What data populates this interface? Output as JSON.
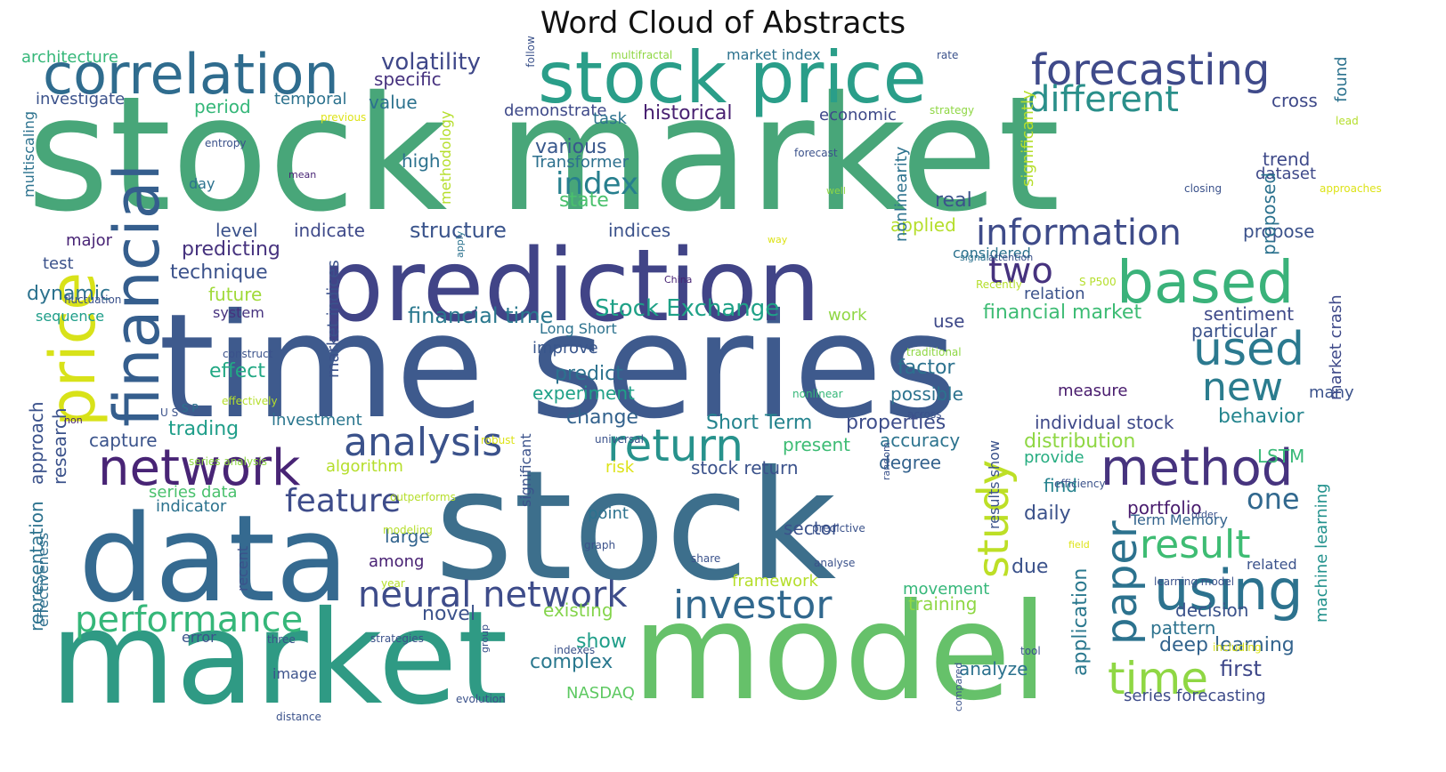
{
  "title": "Word Cloud of Abstracts",
  "palette_note": "viridis",
  "words": [
    {
      "text": "stock market",
      "size": 178,
      "color": "#48a679",
      "rot": 0
    },
    {
      "text": "time series",
      "size": 162,
      "color": "#3e5a8d",
      "rot": 0
    },
    {
      "text": "stock",
      "size": 170,
      "color": "#3d6f8c",
      "rot": 0
    },
    {
      "text": "model",
      "size": 150,
      "color": "#66c16a",
      "rot": 0
    },
    {
      "text": "market",
      "size": 145,
      "color": "#2f9a84",
      "rot": 0
    },
    {
      "text": "data",
      "size": 135,
      "color": "#356a90",
      "rot": 0
    },
    {
      "text": "prediction",
      "size": 112,
      "color": "#414487",
      "rot": 0
    },
    {
      "text": "stock price",
      "size": 80,
      "color": "#2a9e89",
      "rot": 0
    },
    {
      "text": "correlation",
      "size": 62,
      "color": "#2f6c8e",
      "rot": 0
    },
    {
      "text": "financial",
      "size": 70,
      "color": "#355e8d",
      "rot": 270
    },
    {
      "text": "price",
      "size": 70,
      "color": "#d8e219",
      "rot": 270
    },
    {
      "text": "forecasting",
      "size": 48,
      "color": "#3f4a8a",
      "rot": 0
    },
    {
      "text": "different",
      "size": 40,
      "color": "#2a8f8a",
      "rot": 0
    },
    {
      "text": "based",
      "size": 66,
      "color": "#3ab27a",
      "rot": 0
    },
    {
      "text": "information",
      "size": 40,
      "color": "#3e4b89",
      "rot": 0
    },
    {
      "text": "two",
      "size": 40,
      "color": "#46327e",
      "rot": 0
    },
    {
      "text": "used",
      "size": 52,
      "color": "#2b798f",
      "rot": 0
    },
    {
      "text": "new",
      "size": 44,
      "color": "#2b7c8e",
      "rot": 0
    },
    {
      "text": "network",
      "size": 56,
      "color": "#482475",
      "rot": 0
    },
    {
      "text": "analysis",
      "size": 44,
      "color": "#3b528b",
      "rot": 0
    },
    {
      "text": "return",
      "size": 50,
      "color": "#27928c",
      "rot": 0
    },
    {
      "text": "method",
      "size": 56,
      "color": "#46337e",
      "rot": 0
    },
    {
      "text": "study",
      "size": 48,
      "color": "#bddf26",
      "rot": 270
    },
    {
      "text": "paper",
      "size": 48,
      "color": "#2c728e",
      "rot": 270
    },
    {
      "text": "result",
      "size": 44,
      "color": "#3ebc73",
      "rot": 0
    },
    {
      "text": "using",
      "size": 62,
      "color": "#2c728e",
      "rot": 0
    },
    {
      "text": "time",
      "size": 50,
      "color": "#8fd744",
      "rot": 0
    },
    {
      "text": "one",
      "size": 32,
      "color": "#31688e",
      "rot": 0
    },
    {
      "text": "feature",
      "size": 36,
      "color": "#3e4c8a",
      "rot": 0
    },
    {
      "text": "performance",
      "size": 40,
      "color": "#35b779",
      "rot": 0
    },
    {
      "text": "neural network",
      "size": 40,
      "color": "#3e4c8a",
      "rot": 0
    },
    {
      "text": "investor",
      "size": 44,
      "color": "#31688e",
      "rot": 0
    },
    {
      "text": "index",
      "size": 34,
      "color": "#277f8e",
      "rot": 0
    },
    {
      "text": "volatility",
      "size": 26,
      "color": "#3f4889",
      "rot": 0
    },
    {
      "text": "specific",
      "size": 20,
      "color": "#46317e",
      "rot": 0
    },
    {
      "text": "historical",
      "size": 22,
      "color": "#482071",
      "rot": 0
    },
    {
      "text": "various",
      "size": 22,
      "color": "#38588c",
      "rot": 0
    },
    {
      "text": "Transformer",
      "size": 18,
      "color": "#2d708e",
      "rot": 0
    },
    {
      "text": "state",
      "size": 22,
      "color": "#4ac16d",
      "rot": 0
    },
    {
      "text": "structure",
      "size": 24,
      "color": "#3a548c",
      "rot": 0
    },
    {
      "text": "indices",
      "size": 20,
      "color": "#3b528b",
      "rot": 0
    },
    {
      "text": "level",
      "size": 20,
      "color": "#3b528b",
      "rot": 0
    },
    {
      "text": "indicate",
      "size": 20,
      "color": "#3e4989",
      "rot": 0
    },
    {
      "text": "predicting",
      "size": 22,
      "color": "#46327e",
      "rot": 0
    },
    {
      "text": "technique",
      "size": 22,
      "color": "#3b528b",
      "rot": 0
    },
    {
      "text": "future",
      "size": 20,
      "color": "#a0da39",
      "rot": 0
    },
    {
      "text": "system",
      "size": 16,
      "color": "#46327e",
      "rot": 0
    },
    {
      "text": "financial time",
      "size": 24,
      "color": "#2a788e",
      "rot": 0
    },
    {
      "text": "Stock Exchange",
      "size": 26,
      "color": "#1fa187",
      "rot": 0
    },
    {
      "text": "Long Short",
      "size": 16,
      "color": "#2c728e",
      "rot": 0
    },
    {
      "text": "improve",
      "size": 18,
      "color": "#39568c",
      "rot": 0
    },
    {
      "text": "predict",
      "size": 22,
      "color": "#2c728e",
      "rot": 0
    },
    {
      "text": "experiment",
      "size": 20,
      "color": "#1fa187",
      "rot": 0
    },
    {
      "text": "change",
      "size": 22,
      "color": "#33628d",
      "rot": 0
    },
    {
      "text": "effect",
      "size": 22,
      "color": "#22a884",
      "rot": 0
    },
    {
      "text": "trading",
      "size": 22,
      "color": "#1f9e89",
      "rot": 0
    },
    {
      "text": "investment",
      "size": 18,
      "color": "#2a768e",
      "rot": 0
    },
    {
      "text": "capture",
      "size": 20,
      "color": "#3a538b",
      "rot": 0
    },
    {
      "text": "Short Term",
      "size": 22,
      "color": "#25848e",
      "rot": 0
    },
    {
      "text": "properties",
      "size": 22,
      "color": "#3d4d8a",
      "rot": 0
    },
    {
      "text": "accuracy",
      "size": 20,
      "color": "#2c738e",
      "rot": 0
    },
    {
      "text": "distribution",
      "size": 22,
      "color": "#8fd744",
      "rot": 0
    },
    {
      "text": "LSTM",
      "size": 20,
      "color": "#38b977",
      "rot": 0
    },
    {
      "text": "behavior",
      "size": 22,
      "color": "#25858e",
      "rot": 0
    },
    {
      "text": "individual stock",
      "size": 20,
      "color": "#3e4989",
      "rot": 0
    },
    {
      "text": "present",
      "size": 20,
      "color": "#3dbc74",
      "rot": 0
    },
    {
      "text": "stock return",
      "size": 20,
      "color": "#3b528b",
      "rot": 0
    },
    {
      "text": "degree",
      "size": 20,
      "color": "#33628d",
      "rot": 0
    },
    {
      "text": "algorithm",
      "size": 18,
      "color": "#b5de2b",
      "rot": 0
    },
    {
      "text": "risk",
      "size": 18,
      "color": "#dde318",
      "rot": 0
    },
    {
      "text": "series data",
      "size": 18,
      "color": "#4ac16d",
      "rot": 0
    },
    {
      "text": "indicator",
      "size": 18,
      "color": "#2c728e",
      "rot": 0
    },
    {
      "text": "research",
      "size": 20,
      "color": "#3b528b",
      "rot": 270
    },
    {
      "text": "approach",
      "size": 20,
      "color": "#3b528b",
      "rot": 270
    },
    {
      "text": "representation",
      "size": 20,
      "color": "#2c728e",
      "rot": 270
    },
    {
      "text": "effectiveness",
      "size": 16,
      "color": "#2e6f8e",
      "rot": 270
    },
    {
      "text": "large",
      "size": 20,
      "color": "#32648e",
      "rot": 0
    },
    {
      "text": "among",
      "size": 18,
      "color": "#482173",
      "rot": 0
    },
    {
      "text": "point",
      "size": 18,
      "color": "#2c728e",
      "rot": 0
    },
    {
      "text": "sector",
      "size": 20,
      "color": "#3b528b",
      "rot": 0
    },
    {
      "text": "daily",
      "size": 22,
      "color": "#3b528b",
      "rot": 0
    },
    {
      "text": "find",
      "size": 20,
      "color": "#26828e",
      "rot": 0
    },
    {
      "text": "due",
      "size": 22,
      "color": "#3b528b",
      "rot": 0
    },
    {
      "text": "portfolio",
      "size": 20,
      "color": "#481b6d",
      "rot": 0
    },
    {
      "text": "Term Memory",
      "size": 16,
      "color": "#33638d",
      "rot": 0
    },
    {
      "text": "provide",
      "size": 18,
      "color": "#27ad81",
      "rot": 0
    },
    {
      "text": "novel",
      "size": 22,
      "color": "#3b528b",
      "rot": 0
    },
    {
      "text": "existing",
      "size": 20,
      "color": "#84d44b",
      "rot": 0
    },
    {
      "text": "show",
      "size": 22,
      "color": "#1f9e89",
      "rot": 0
    },
    {
      "text": "complex",
      "size": 22,
      "color": "#2a788e",
      "rot": 0
    },
    {
      "text": "NASDAQ",
      "size": 18,
      "color": "#5ec962",
      "rot": 0
    },
    {
      "text": "framework",
      "size": 18,
      "color": "#b5de2b",
      "rot": 0
    },
    {
      "text": "movement",
      "size": 18,
      "color": "#35b779",
      "rot": 0
    },
    {
      "text": "training",
      "size": 20,
      "color": "#8fd744",
      "rot": 0
    },
    {
      "text": "decision",
      "size": 20,
      "color": "#3b528b",
      "rot": 0
    },
    {
      "text": "pattern",
      "size": 20,
      "color": "#2c728e",
      "rot": 0
    },
    {
      "text": "deep learning",
      "size": 22,
      "color": "#33638d",
      "rot": 0
    },
    {
      "text": "first",
      "size": 24,
      "color": "#3f4889",
      "rot": 0
    },
    {
      "text": "analyze",
      "size": 20,
      "color": "#2c728e",
      "rot": 0
    },
    {
      "text": "series forecasting",
      "size": 18,
      "color": "#3e4c8a",
      "rot": 0
    },
    {
      "text": "application",
      "size": 22,
      "color": "#2a788e",
      "rot": 270
    },
    {
      "text": "machine learning",
      "size": 18,
      "color": "#21918c",
      "rot": 270
    },
    {
      "text": "related",
      "size": 16,
      "color": "#3b528b",
      "rot": 0
    },
    {
      "text": "many",
      "size": 18,
      "color": "#3b528b",
      "rot": 0
    },
    {
      "text": "market crash",
      "size": 18,
      "color": "#3e4989",
      "rot": 270
    },
    {
      "text": "found",
      "size": 18,
      "color": "#2c728e",
      "rot": 270
    },
    {
      "text": "cross",
      "size": 20,
      "color": "#3e4989",
      "rot": 0
    },
    {
      "text": "trend",
      "size": 20,
      "color": "#3e4989",
      "rot": 0
    },
    {
      "text": "dataset",
      "size": 18,
      "color": "#3e4989",
      "rot": 0
    },
    {
      "text": "propose",
      "size": 20,
      "color": "#3b528b",
      "rot": 0
    },
    {
      "text": "proposed",
      "size": 20,
      "color": "#2c728e",
      "rot": 270
    },
    {
      "text": "sentiment",
      "size": 20,
      "color": "#3e4989",
      "rot": 0
    },
    {
      "text": "particular",
      "size": 20,
      "color": "#3b528b",
      "rot": 0
    },
    {
      "text": "relation",
      "size": 18,
      "color": "#3b528b",
      "rot": 0
    },
    {
      "text": "financial market",
      "size": 22,
      "color": "#3dbc74",
      "rot": 0
    },
    {
      "text": "factor",
      "size": 22,
      "color": "#2c728e",
      "rot": 0
    },
    {
      "text": "possible",
      "size": 20,
      "color": "#2c728e",
      "rot": 0
    },
    {
      "text": "measure",
      "size": 18,
      "color": "#481b6d",
      "rot": 0
    },
    {
      "text": "use",
      "size": 20,
      "color": "#3e4989",
      "rot": 0
    },
    {
      "text": "applied",
      "size": 20,
      "color": "#b5de2b",
      "rot": 0
    },
    {
      "text": "real",
      "size": 22,
      "color": "#3b528b",
      "rot": 0
    },
    {
      "text": "considered",
      "size": 16,
      "color": "#2c728e",
      "rot": 0
    },
    {
      "text": "work",
      "size": 18,
      "color": "#8fd744",
      "rot": 0
    },
    {
      "text": "economic",
      "size": 18,
      "color": "#3e4989",
      "rot": 0
    },
    {
      "text": "nonlinearity",
      "size": 18,
      "color": "#2c728e",
      "rot": 270
    },
    {
      "text": "significantly",
      "size": 18,
      "color": "#b5de2b",
      "rot": 270
    },
    {
      "text": "methodology",
      "size": 16,
      "color": "#b5de2b",
      "rot": 270
    },
    {
      "text": "demonstrate",
      "size": 18,
      "color": "#3e4989",
      "rot": 0
    },
    {
      "text": "task",
      "size": 18,
      "color": "#2c728e",
      "rot": 0
    },
    {
      "text": "temporal",
      "size": 18,
      "color": "#2c728e",
      "rot": 0
    },
    {
      "text": "value",
      "size": 20,
      "color": "#2c728e",
      "rot": 0
    },
    {
      "text": "period",
      "size": 20,
      "color": "#35b779",
      "rot": 0
    },
    {
      "text": "high",
      "size": 20,
      "color": "#2c728e",
      "rot": 0
    },
    {
      "text": "investigate",
      "size": 18,
      "color": "#3b528b",
      "rot": 0
    },
    {
      "text": "architecture",
      "size": 18,
      "color": "#35b779",
      "rot": 0
    },
    {
      "text": "multiscaling",
      "size": 16,
      "color": "#2c728e",
      "rot": 270
    },
    {
      "text": "day",
      "size": 16,
      "color": "#2c728e",
      "rot": 0
    },
    {
      "text": "major",
      "size": 18,
      "color": "#482475",
      "rot": 0
    },
    {
      "text": "test",
      "size": 18,
      "color": "#3b528b",
      "rot": 0
    },
    {
      "text": "dynamic",
      "size": 22,
      "color": "#2c728e",
      "rot": 0
    },
    {
      "text": "fluctuation",
      "size": 12,
      "color": "#3b528b",
      "rot": 0
    },
    {
      "text": "sequence",
      "size": 16,
      "color": "#1f9e89",
      "rot": 0
    },
    {
      "text": "market indices",
      "size": 18,
      "color": "#3b528b",
      "rot": 270
    },
    {
      "text": "market index",
      "size": 16,
      "color": "#2c728e",
      "rot": 0
    },
    {
      "text": "significant",
      "size": 16,
      "color": "#3b528b",
      "rot": 270
    },
    {
      "text": "results show",
      "size": 16,
      "color": "#3b528b",
      "rot": 270
    },
    {
      "text": "recent",
      "size": 16,
      "color": "#3b528b",
      "rot": 270
    },
    {
      "text": "error",
      "size": 16,
      "color": "#3b528b",
      "rot": 0
    },
    {
      "text": "image",
      "size": 16,
      "color": "#3b528b",
      "rot": 0
    },
    {
      "text": "multifractal",
      "size": 12,
      "color": "#8fd744",
      "rot": 0
    },
    {
      "text": "rate",
      "size": 12,
      "color": "#3b528b",
      "rot": 0
    },
    {
      "text": "strategy",
      "size": 12,
      "color": "#8fd744",
      "rot": 0
    },
    {
      "text": "previous",
      "size": 12,
      "color": "#dde318",
      "rot": 0
    },
    {
      "text": "entropy",
      "size": 12,
      "color": "#3b528b",
      "rot": 0
    },
    {
      "text": "mean",
      "size": 11,
      "color": "#482475",
      "rot": 0
    },
    {
      "text": "forecast",
      "size": 12,
      "color": "#3b528b",
      "rot": 0
    },
    {
      "text": "well",
      "size": 11,
      "color": "#8fd744",
      "rot": 0
    },
    {
      "text": "closing",
      "size": 12,
      "color": "#3b528b",
      "rot": 0
    },
    {
      "text": "approaches",
      "size": 12,
      "color": "#dde318",
      "rot": 0
    },
    {
      "text": "lead",
      "size": 12,
      "color": "#b5de2b",
      "rot": 0
    },
    {
      "text": "follow",
      "size": 12,
      "color": "#3b528b",
      "rot": 270
    },
    {
      "text": "signal",
      "size": 11,
      "color": "#2c728e",
      "rot": 0
    },
    {
      "text": "attention",
      "size": 11,
      "color": "#3b528b",
      "rot": 0
    },
    {
      "text": "S P500",
      "size": 12,
      "color": "#b5de2b",
      "rot": 0
    },
    {
      "text": "Recently",
      "size": 12,
      "color": "#b5de2b",
      "rot": 0
    },
    {
      "text": "way",
      "size": 11,
      "color": "#dde318",
      "rot": 0
    },
    {
      "text": "China",
      "size": 11,
      "color": "#482475",
      "rot": 0
    },
    {
      "text": "apply",
      "size": 11,
      "color": "#2c728e",
      "rot": 270
    },
    {
      "text": "construct",
      "size": 12,
      "color": "#3b528b",
      "rot": 0
    },
    {
      "text": "effectively",
      "size": 12,
      "color": "#b5de2b",
      "rot": 0
    },
    {
      "text": "U S",
      "size": 12,
      "color": "#3b528b",
      "rot": 0
    },
    {
      "text": "S P",
      "size": 12,
      "color": "#2c728e",
      "rot": 0
    },
    {
      "text": "non",
      "size": 11,
      "color": "#482475",
      "rot": 0
    },
    {
      "text": "series analysis",
      "size": 12,
      "color": "#8fd744",
      "rot": 0
    },
    {
      "text": "robust",
      "size": 12,
      "color": "#dde318",
      "rot": 0
    },
    {
      "text": "universal",
      "size": 12,
      "color": "#3b528b",
      "rot": 0
    },
    {
      "text": "outperforms",
      "size": 12,
      "color": "#b5de2b",
      "rot": 0
    },
    {
      "text": "modeling",
      "size": 12,
      "color": "#b5de2b",
      "rot": 0
    },
    {
      "text": "year",
      "size": 12,
      "color": "#b5de2b",
      "rot": 0
    },
    {
      "text": "strategies",
      "size": 12,
      "color": "#3b528b",
      "rot": 0
    },
    {
      "text": "three",
      "size": 12,
      "color": "#3b528b",
      "rot": 0
    },
    {
      "text": "distance",
      "size": 12,
      "color": "#3b528b",
      "rot": 0
    },
    {
      "text": "group",
      "size": 11,
      "color": "#3b528b",
      "rot": 270
    },
    {
      "text": "indexes",
      "size": 12,
      "color": "#3b528b",
      "rot": 0
    },
    {
      "text": "evolution",
      "size": 12,
      "color": "#3b528b",
      "rot": 0
    },
    {
      "text": "graph",
      "size": 12,
      "color": "#3b528b",
      "rot": 0
    },
    {
      "text": "share",
      "size": 12,
      "color": "#3b528b",
      "rot": 0
    },
    {
      "text": "predictive",
      "size": 12,
      "color": "#3b528b",
      "rot": 0
    },
    {
      "text": "analyse",
      "size": 12,
      "color": "#3b528b",
      "rot": 0
    },
    {
      "text": "random",
      "size": 11,
      "color": "#3b528b",
      "rot": 270
    },
    {
      "text": "nonlinear",
      "size": 12,
      "color": "#35b779",
      "rot": 0
    },
    {
      "text": "across",
      "size": 12,
      "color": "#3b528b",
      "rot": 0
    },
    {
      "text": "traditional",
      "size": 12,
      "color": "#8fd744",
      "rot": 0
    },
    {
      "text": "efficiency",
      "size": 12,
      "color": "#3b528b",
      "rot": 0
    },
    {
      "text": "order",
      "size": 11,
      "color": "#3b528b",
      "rot": 0
    },
    {
      "text": "field",
      "size": 11,
      "color": "#dde318",
      "rot": 0
    },
    {
      "text": "learning model",
      "size": 12,
      "color": "#3b528b",
      "rot": 0
    },
    {
      "text": "including",
      "size": 12,
      "color": "#dde318",
      "rot": 0
    },
    {
      "text": "tool",
      "size": 12,
      "color": "#3b528b",
      "rot": 0
    },
    {
      "text": "compared",
      "size": 11,
      "color": "#3b528b",
      "rot": 270
    }
  ]
}
